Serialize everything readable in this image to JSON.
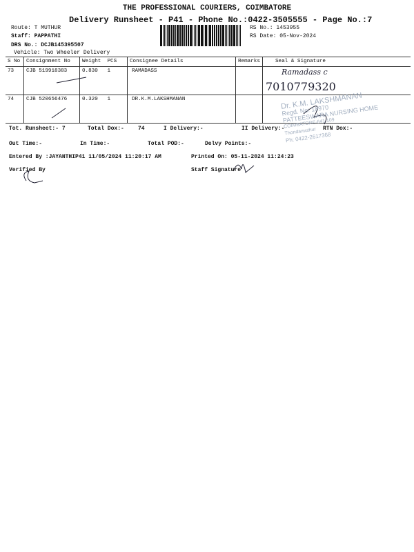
{
  "header": {
    "company": "THE PROFESSIONAL COURIERS, COIMBATORE",
    "subtitle": "Delivery Runsheet - P41 - Phone No.:0422-3505555 - Page No.:7",
    "route": "Route: T MUTHUR",
    "staff": "Staff: PAPPATHI",
    "drs": "DRS No.: DCJB145395507",
    "vehicle": "Vehicle: Two Wheeler Delivery",
    "rs_no": "RS No.: 1453955",
    "rs_date": "RS Date: 05-Nov-2024"
  },
  "table": {
    "columns": [
      "S No",
      "Consignment No",
      "Weight",
      "PCS",
      "Consignee Details",
      "Remarks",
      "Seal & Signature"
    ],
    "rows": [
      {
        "sno": "73",
        "consignment": "CJB 519918383",
        "weight": "0.830",
        "pcs": "1",
        "consignee": "RAMADASS",
        "remarks": ""
      },
      {
        "sno": "74",
        "consignment": "CJB 520656476",
        "weight": "0.320",
        "pcs": "1",
        "consignee": "DR.K.M.LAKSHMANAN",
        "remarks": ""
      }
    ]
  },
  "summary": {
    "tot_runsheet": "Tot. Runsheet:- 7",
    "total_dox": "Total Dox:-",
    "total_dox_value": "74",
    "i_delivery": "I Delivery:-",
    "ii_delivery": "II Delivery:-",
    "rtn_dox": "RTN Dox:-",
    "out_time": "Out Time:-",
    "in_time": "In Time:-",
    "total_pod": "Total POD:-",
    "delvy_points": "Delvy Points:-",
    "entered_by": "Entered By :JAYANTHIP41 11/05/2024 11:20:17 AM",
    "printed_on": "Printed On: 05-11-2024 11:24:23",
    "verified_by": "Verified By",
    "staff_signature": "Staff Signature"
  },
  "handwriting": {
    "row1_sign": "Ramadass c",
    "row1_phone": "7010779320"
  },
  "stamp": {
    "line1": "Dr. K.M. LAKSHMANAN",
    "line2": "Regd. No: 18970",
    "line3": "PATTEESWARA NURSING HOME",
    "line4": "COIMBATORE-641 109",
    "line5": "Thondamuthur",
    "line6": "Ph: 0422-2617368"
  }
}
